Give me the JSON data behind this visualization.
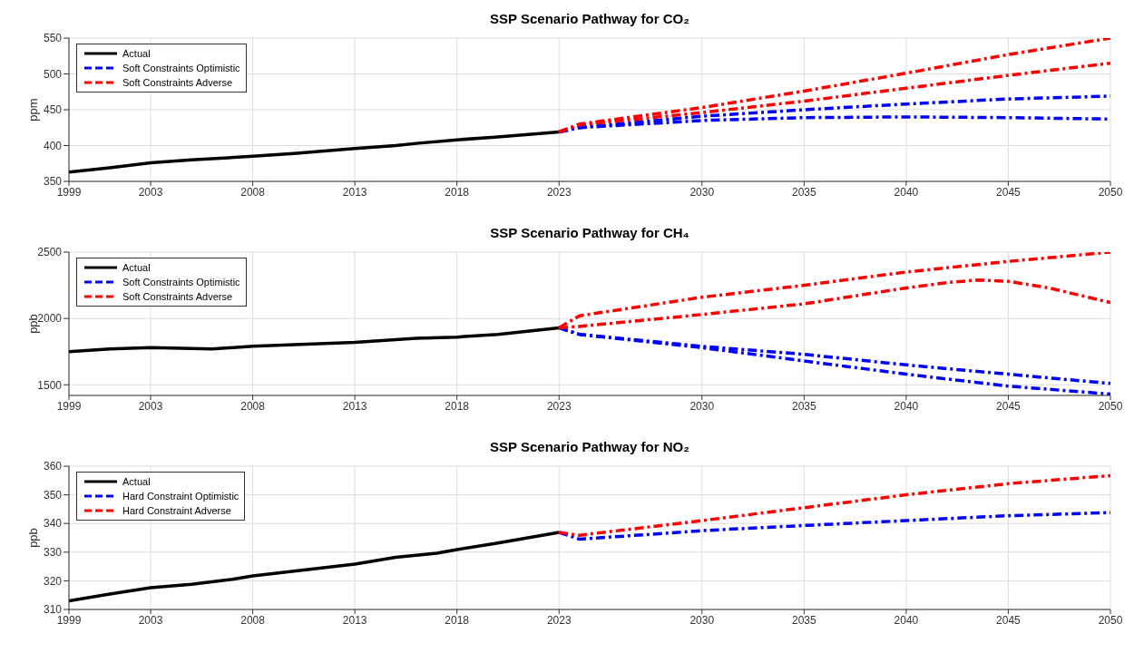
{
  "chart_data": [
    {
      "type": "line",
      "title": "SSP Scenario Pathway for CO₂",
      "ylabel": "ppm",
      "xlim": [
        1999,
        2050
      ],
      "xticks": [
        1999,
        2003,
        2008,
        2013,
        2018,
        2023,
        2030,
        2035,
        2040,
        2045,
        2050
      ],
      "ylim": [
        350,
        550
      ],
      "yticks": [
        350,
        400,
        450,
        500,
        550
      ],
      "grid": true,
      "legend": "top left",
      "series": [
        {
          "name": "Actual",
          "color": "#000000",
          "line_style": "solid",
          "x": [
            1999,
            2001,
            2003,
            2005,
            2008,
            2010,
            2013,
            2015,
            2016,
            2018,
            2020,
            2023
          ],
          "values": [
            363,
            369,
            376,
            380,
            385,
            389,
            396,
            400,
            403,
            408,
            412,
            419
          ]
        },
        {
          "name": "Soft Constraints Optimistic",
          "color": "#0000ff",
          "line_style": "dashed",
          "x": [
            2023,
            2024,
            2030,
            2035,
            2040,
            2045,
            2050
          ],
          "values": [
            419,
            425,
            441,
            450,
            458,
            465,
            469
          ]
        },
        {
          "color": "#0000ff",
          "line_style": "dashed",
          "x": [
            2023,
            2024,
            2030,
            2035,
            2040,
            2045,
            2050
          ],
          "values": [
            419,
            425,
            435,
            439,
            440,
            439,
            437
          ]
        },
        {
          "name": "Soft Constraints Adverse",
          "color": "#ff0000",
          "line_style": "dashed",
          "x": [
            2023,
            2024,
            2030,
            2035,
            2040,
            2045,
            2050
          ],
          "values": [
            419,
            430,
            453,
            476,
            501,
            527,
            550
          ]
        },
        {
          "color": "#ff0000",
          "line_style": "dashed",
          "x": [
            2023,
            2024,
            2030,
            2035,
            2040,
            2045,
            2050
          ],
          "values": [
            419,
            429,
            446,
            462,
            480,
            498,
            515
          ]
        }
      ]
    },
    {
      "type": "line",
      "title": "SSP Scenario Pathway for CH₄",
      "ylabel": "ppb",
      "xlim": [
        1999,
        2050
      ],
      "xticks": [
        1999,
        2003,
        2008,
        2013,
        2018,
        2023,
        2030,
        2035,
        2040,
        2045,
        2050
      ],
      "ylim": [
        1420,
        2500
      ],
      "yticks": [
        1500,
        2000,
        2500
      ],
      "grid": true,
      "legend": "top left",
      "series": [
        {
          "name": "Actual",
          "color": "#000000",
          "line_style": "solid",
          "x": [
            1999,
            2001,
            2003,
            2006,
            2008,
            2013,
            2016,
            2018,
            2020,
            2023
          ],
          "values": [
            1750,
            1770,
            1780,
            1770,
            1790,
            1820,
            1850,
            1860,
            1880,
            1930
          ]
        },
        {
          "name": "Soft Constraints Optimistic",
          "color": "#0000ff",
          "line_style": "dashed",
          "x": [
            2023,
            2024,
            2030,
            2035,
            2040,
            2045,
            2050
          ],
          "values": [
            1930,
            1880,
            1790,
            1730,
            1650,
            1580,
            1510
          ]
        },
        {
          "color": "#0000ff",
          "line_style": "dashed",
          "x": [
            2023,
            2024,
            2030,
            2035,
            2040,
            2045,
            2050
          ],
          "values": [
            1930,
            1880,
            1780,
            1680,
            1580,
            1490,
            1430
          ]
        },
        {
          "name": "Soft Constraints Adverse",
          "color": "#ff0000",
          "line_style": "dashed",
          "x": [
            2023,
            2024,
            2030,
            2035,
            2040,
            2045,
            2050
          ],
          "values": [
            1930,
            2020,
            2160,
            2250,
            2350,
            2430,
            2500
          ]
        },
        {
          "color": "#ff0000",
          "line_style": "dashed",
          "x": [
            2023,
            2024,
            2030,
            2035,
            2040,
            2042,
            2043.5,
            2045,
            2047,
            2050
          ],
          "values": [
            1930,
            1940,
            2030,
            2110,
            2230,
            2270,
            2290,
            2280,
            2230,
            2120
          ]
        }
      ]
    },
    {
      "type": "line",
      "title": "SSP Scenario Pathway for NO₂",
      "ylabel": "ppb",
      "xlim": [
        1999,
        2050
      ],
      "xticks": [
        1999,
        2003,
        2008,
        2013,
        2018,
        2023,
        2030,
        2035,
        2040,
        2045,
        2050
      ],
      "ylim": [
        310,
        360
      ],
      "yticks": [
        310,
        320,
        330,
        340,
        350,
        360
      ],
      "grid": true,
      "legend": "top left",
      "series": [
        {
          "name": "Actual",
          "color": "#000000",
          "line_style": "solid",
          "x": [
            1999,
            2001,
            2003,
            2005,
            2007,
            2008,
            2013,
            2015,
            2017,
            2018,
            2020,
            2023
          ],
          "values": [
            313,
            315.4,
            317.6,
            318.8,
            320.5,
            321.7,
            325.8,
            328.2,
            329.6,
            330.9,
            333.2,
            336.9
          ]
        },
        {
          "name": "Hard Constraint Optimistic",
          "color": "#0000ff",
          "line_style": "dashed",
          "x": [
            2023,
            2024,
            2030,
            2035,
            2040,
            2045,
            2050
          ],
          "values": [
            336.9,
            334.5,
            337.5,
            339.3,
            341,
            342.7,
            343.8
          ]
        },
        {
          "name": "Hard Constraint Adverse",
          "color": "#ff0000",
          "line_style": "dashed",
          "x": [
            2023,
            2024,
            2030,
            2035,
            2040,
            2045,
            2050
          ],
          "values": [
            336.9,
            335.9,
            341,
            345.5,
            350,
            353.9,
            356.7
          ]
        }
      ]
    }
  ]
}
